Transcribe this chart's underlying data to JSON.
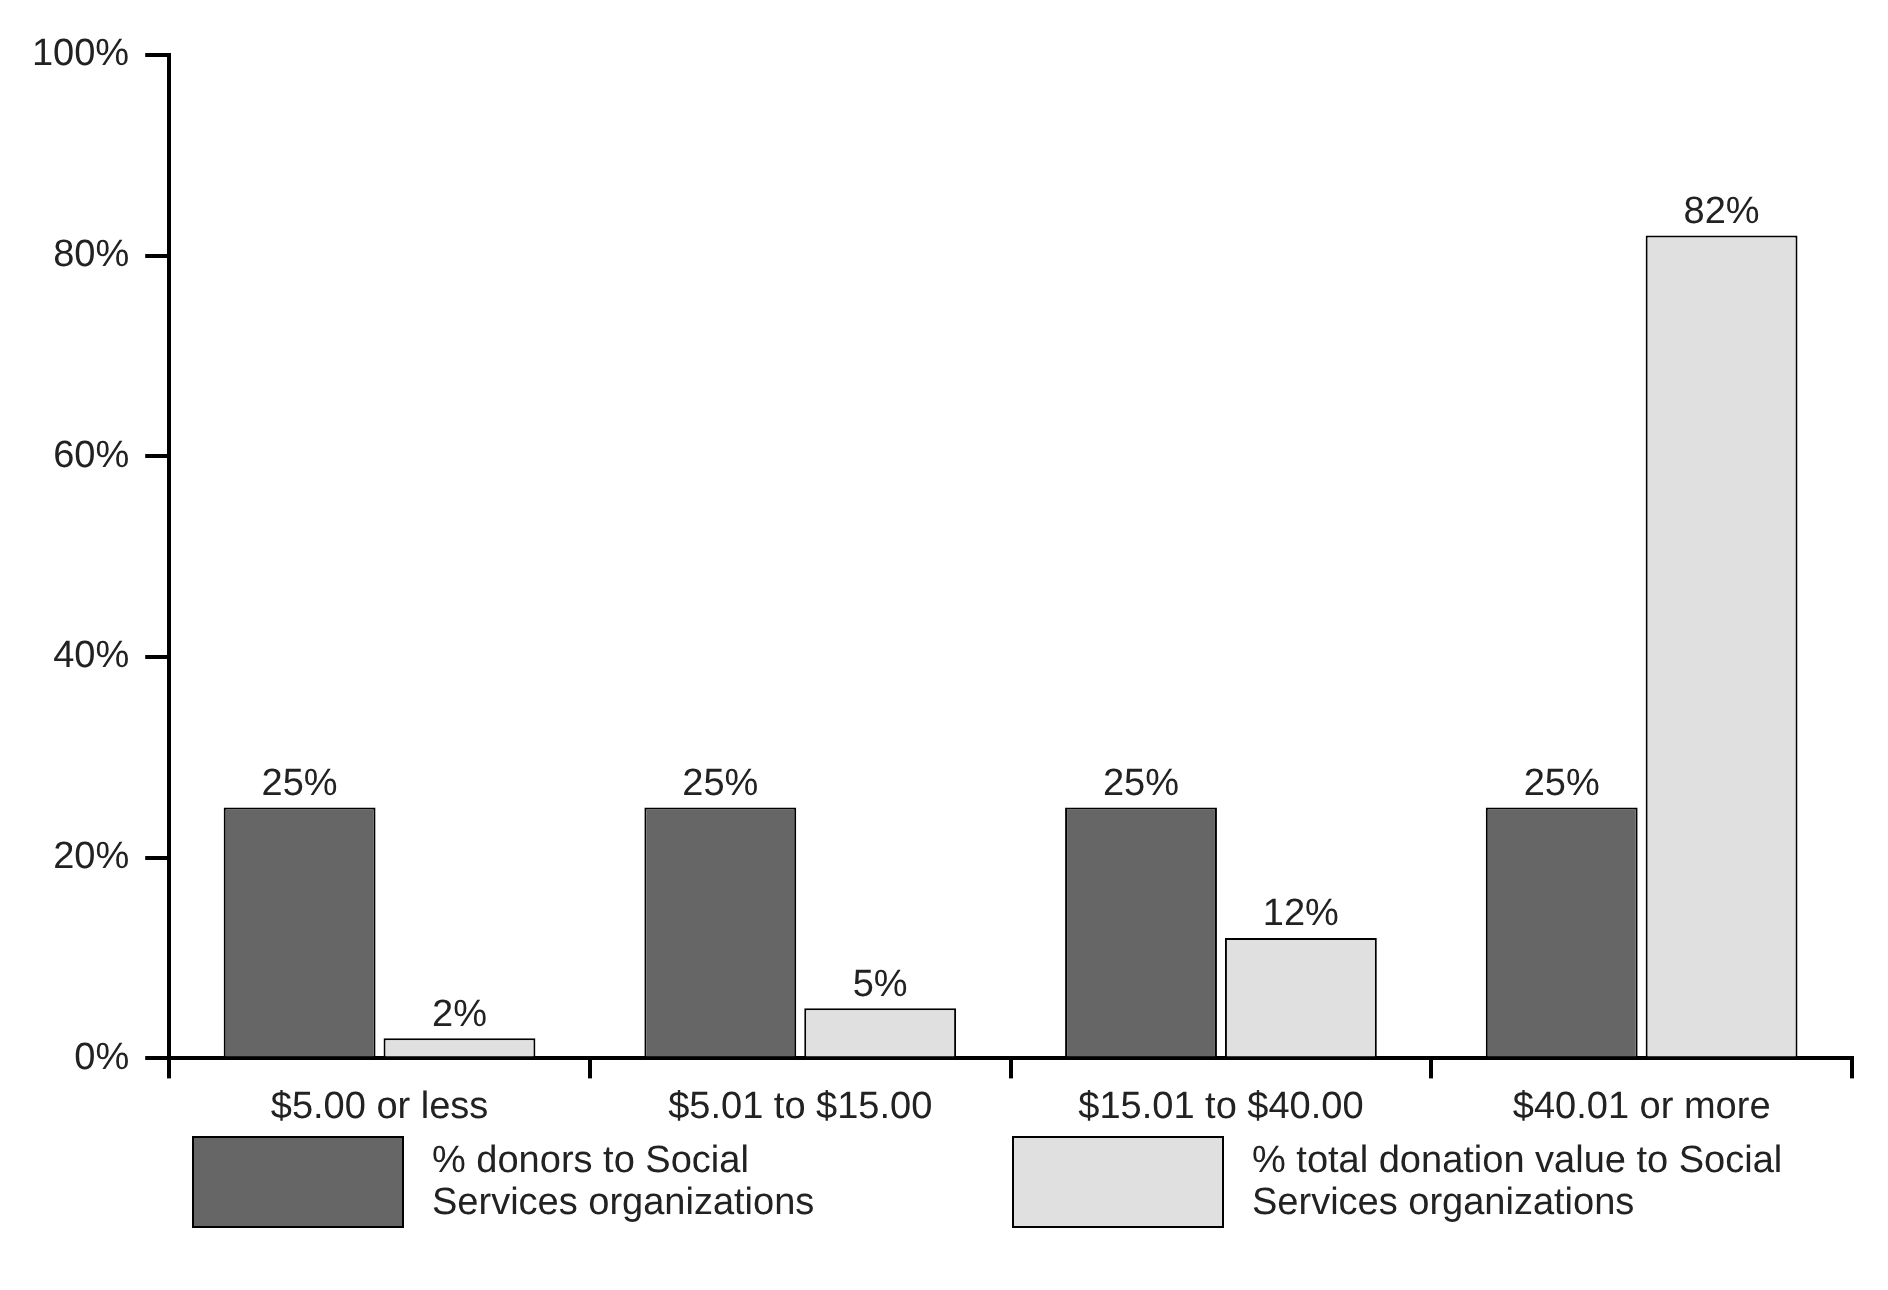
{
  "chart_data": {
    "type": "bar",
    "categories": [
      "$5.00 or less",
      "$5.01 to $15.00",
      "$15.01 to $40.00",
      "$40.01 or more"
    ],
    "series": [
      {
        "name": "% donors to Social Services organizations",
        "color": "#666666",
        "values": [
          25,
          25,
          25,
          25
        ],
        "value_labels": [
          "25%",
          "25%",
          "25%",
          "25%"
        ]
      },
      {
        "name": "% total donation value to Social Services organizations",
        "color": "#e0e0e0",
        "values": [
          2,
          5,
          12,
          82
        ],
        "value_labels": [
          "2%",
          "5%",
          "12%",
          "82%"
        ]
      }
    ],
    "ylim": [
      0,
      100
    ],
    "yticks": [
      {
        "value": 0,
        "label": "0%"
      },
      {
        "value": 20,
        "label": "20%"
      },
      {
        "value": 40,
        "label": "40%"
      },
      {
        "value": 60,
        "label": "60%"
      },
      {
        "value": 80,
        "label": "80%"
      },
      {
        "value": 100,
        "label": "100%"
      }
    ],
    "grid": false,
    "legend": "bottom"
  }
}
